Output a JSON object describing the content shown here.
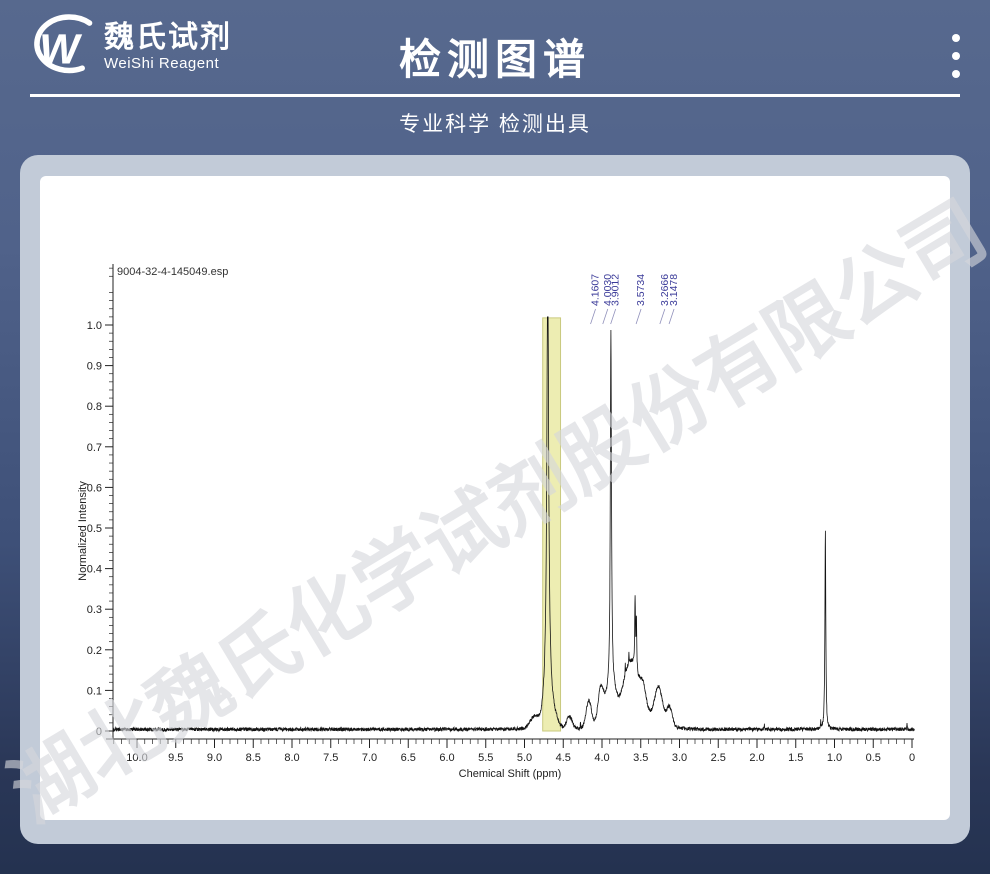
{
  "header": {
    "brand_cn": "魏氏试剂",
    "brand_en": "WeiShi Reagent",
    "title": "检测图谱",
    "subtitle": "专业科学 检测出具",
    "menu_icon": "kebab-menu-icon"
  },
  "watermark_text": "湖北魏氏化学试剂股份有限公司",
  "colors": {
    "page_top": "#57698e",
    "page_bottom": "#243250",
    "card": "#c2cbd8",
    "panel": "#ffffff",
    "trace": "#141414",
    "axis": "#222222",
    "peak_label": "#3b3b99",
    "solvent_band_fill": "#ededb2",
    "solvent_band_stroke": "#c9c97e"
  },
  "chart_data": {
    "type": "line",
    "title": "9004-32-4-145049.esp",
    "xlabel": "Chemical Shift (ppm)",
    "ylabel": "Normalized Intensity",
    "x_axis_reversed": true,
    "xlim": [
      10.31,
      -0.03
    ],
    "ylim": [
      0,
      1.02
    ],
    "grid": false,
    "x_major_tick_values": [
      10.0,
      9.5,
      9.0,
      8.5,
      8.0,
      7.5,
      7.0,
      6.5,
      6.0,
      5.5,
      5.0,
      4.5,
      4.0,
      3.5,
      3.0,
      2.5,
      2.0,
      1.5,
      1.0,
      0.5,
      0
    ],
    "x_major_tick_labels": [
      "10.0",
      "9.5",
      "9.0",
      "8.5",
      "8.0",
      "7.5",
      "7.0",
      "6.5",
      "6.0",
      "5.5",
      "5.0",
      "4.5",
      "4.0",
      "3.5",
      "3.0",
      "2.5",
      "2.0",
      "1.5",
      "1.0",
      "0.5",
      "0"
    ],
    "x_minor_step": 0.1,
    "y_major_tick_values": [
      0,
      0.1,
      0.2,
      0.3,
      0.4,
      0.5,
      0.6,
      0.7,
      0.8,
      0.9,
      1.0
    ],
    "y_major_tick_labels": [
      "0",
      "0.1",
      "0.2",
      "0.3",
      "0.4",
      "0.5",
      "0.6",
      "0.7",
      "0.8",
      "0.9",
      "1.0"
    ],
    "y_minor_step": 0.02,
    "peak_annotations": [
      {
        "label": "4.1607",
        "ppm": 4.1607
      },
      {
        "label": "4.0030",
        "ppm": 4.003
      },
      {
        "label": "3.9012",
        "ppm": 3.9012
      },
      {
        "label": "3.5734",
        "ppm": 3.5734
      },
      {
        "label": "3.2666",
        "ppm": 3.2666
      },
      {
        "label": "3.1478",
        "ppm": 3.1478
      }
    ],
    "solvent_band": {
      "from_ppm": 4.765,
      "to_ppm": 4.535
    },
    "sharp_peaks": [
      [
        4.7,
        1.1,
        0.013
      ],
      [
        3.885,
        0.87,
        0.0085
      ],
      [
        3.573,
        0.175,
        0.006
      ],
      [
        3.556,
        0.125,
        0.0045
      ],
      [
        3.7,
        0.032,
        0.003
      ],
      [
        3.652,
        0.024,
        0.003
      ],
      [
        4.278,
        0.014,
        0.003
      ],
      [
        1.905,
        0.012,
        0.0035
      ],
      [
        1.178,
        0.016,
        0.003
      ],
      [
        1.118,
        0.49,
        0.0065
      ],
      [
        0.065,
        0.018,
        0.003
      ]
    ],
    "broad_humps": [
      [
        4.87,
        0.028,
        0.055
      ],
      [
        4.7,
        0.11,
        0.045
      ],
      [
        4.6,
        0.02,
        0.035
      ],
      [
        4.42,
        0.03,
        0.035
      ],
      [
        4.17,
        0.068,
        0.035
      ],
      [
        4.015,
        0.092,
        0.038
      ],
      [
        3.885,
        0.092,
        0.055
      ],
      [
        3.63,
        0.13,
        0.095
      ],
      [
        3.55,
        0.038,
        0.25
      ],
      [
        3.47,
        0.05,
        0.04
      ],
      [
        3.27,
        0.085,
        0.05
      ],
      [
        3.13,
        0.046,
        0.035
      ]
    ],
    "baseline_offset": 0.004,
    "noise_amplitude": 0.0045,
    "clip_intensity": 1.02
  }
}
